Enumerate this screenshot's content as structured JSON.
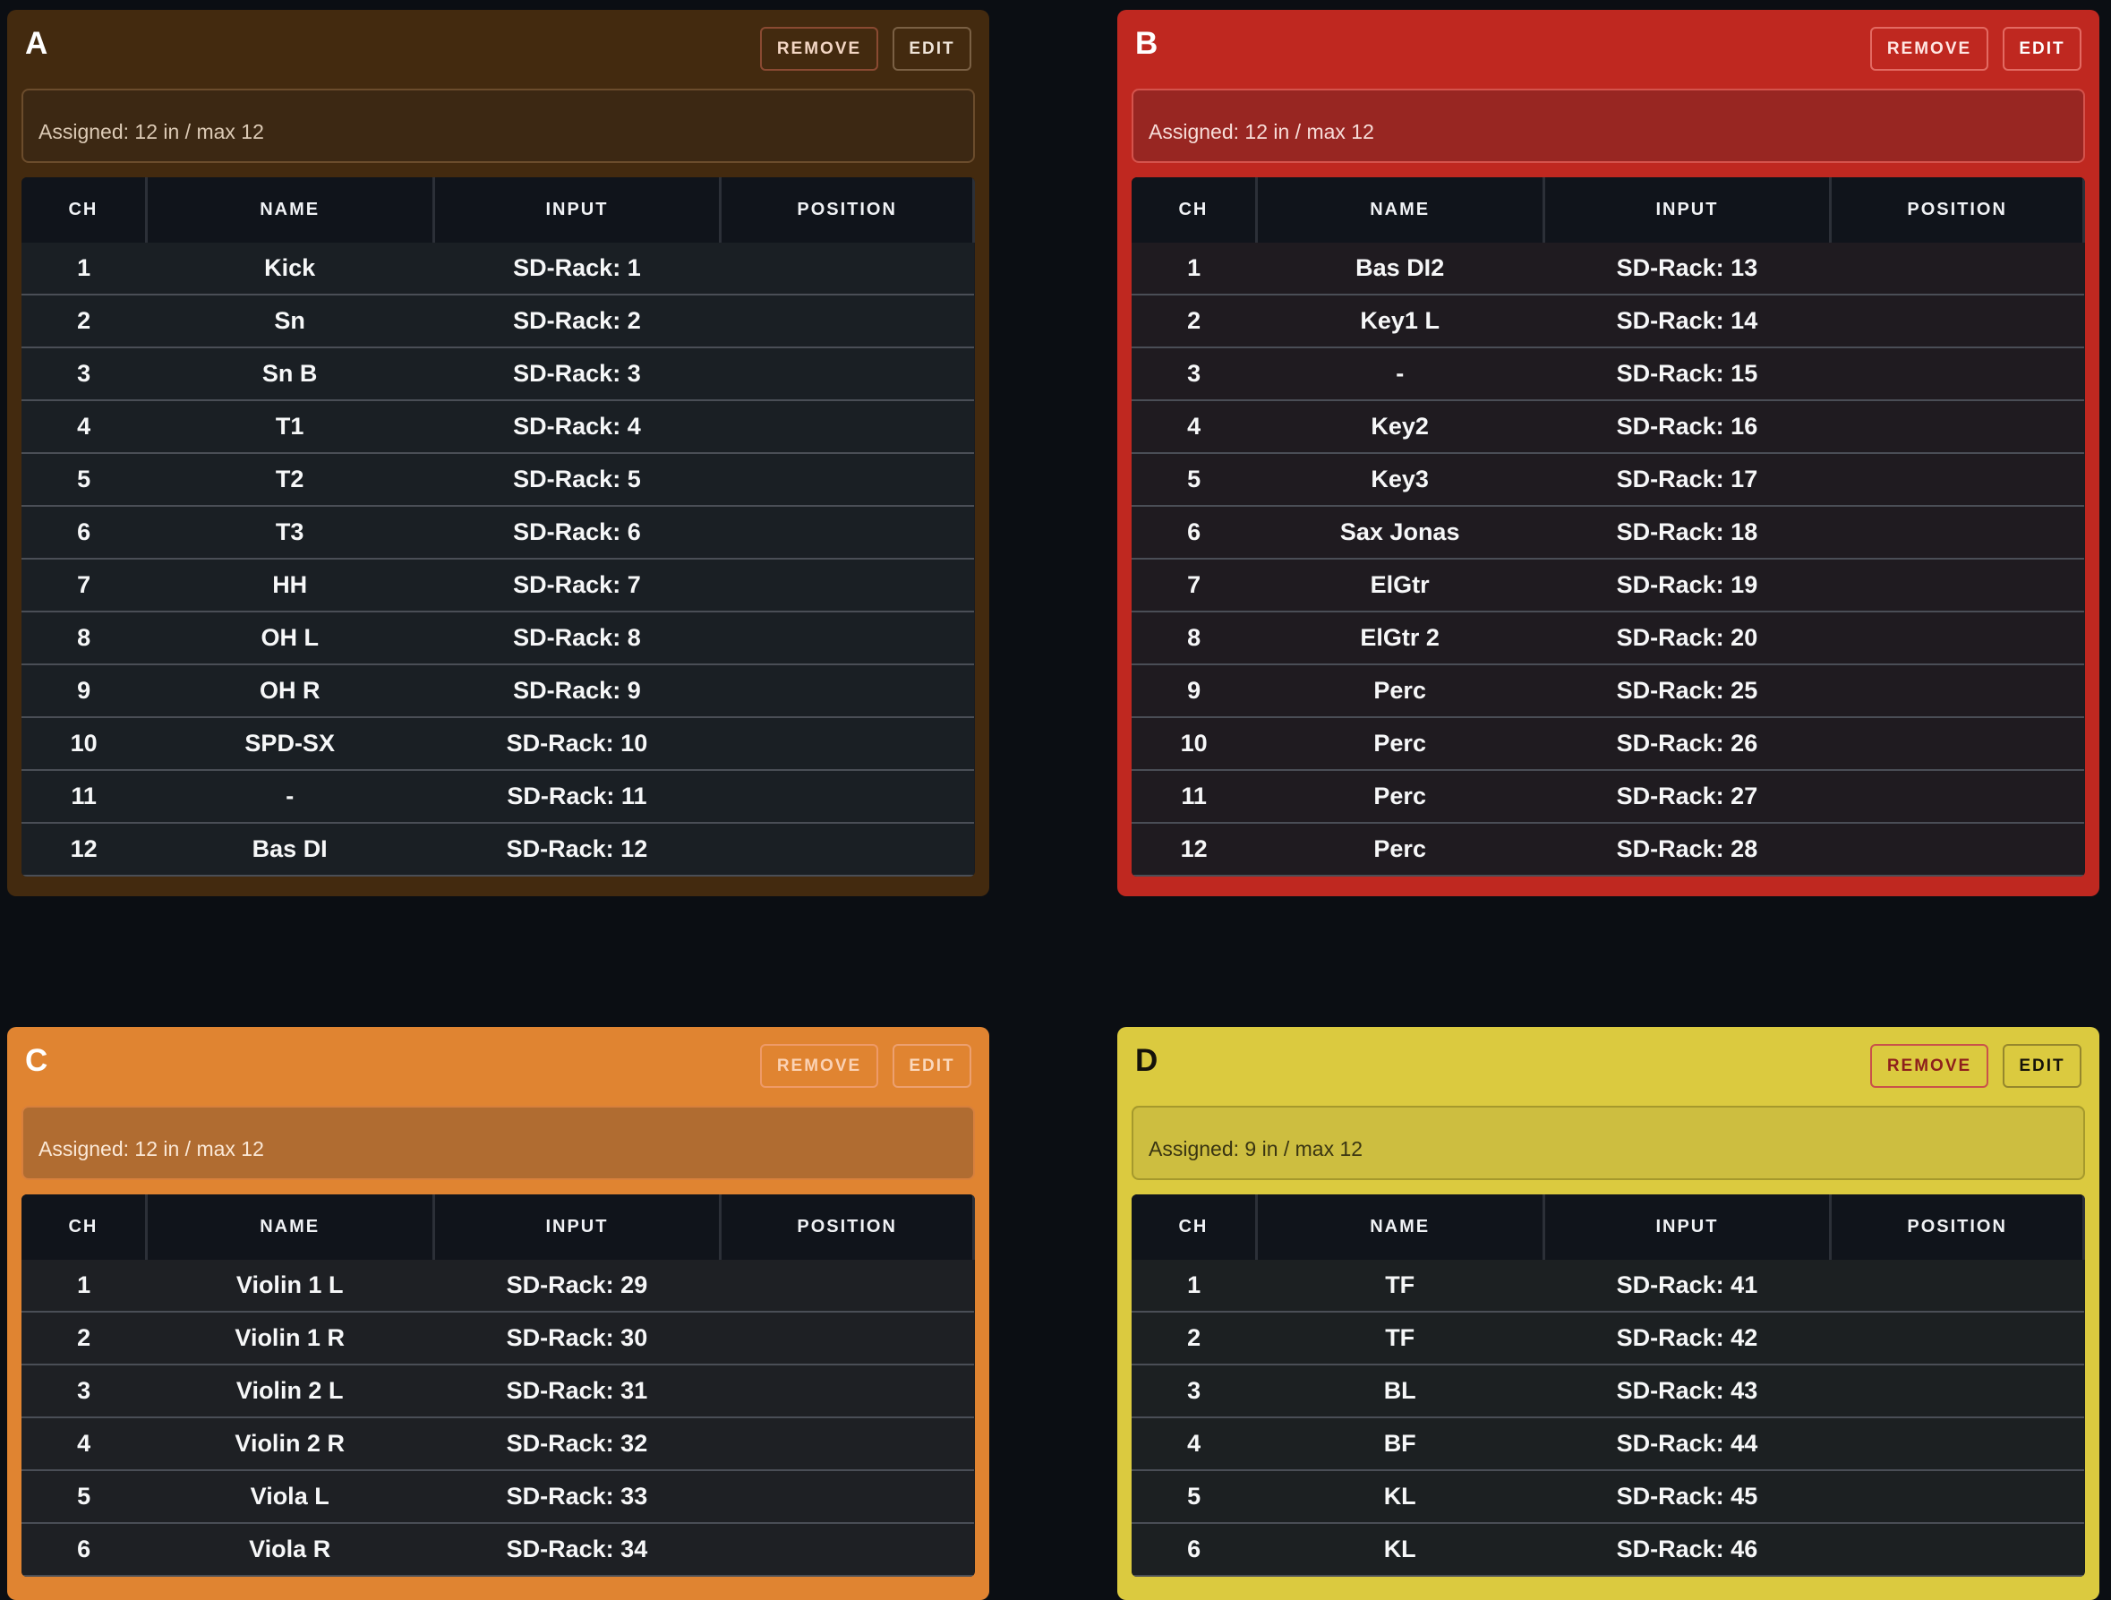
{
  "buttons": {
    "remove": "REMOVE",
    "edit": "EDIT"
  },
  "columns": [
    "CH",
    "NAME",
    "INPUT",
    "POSITION"
  ],
  "panels": [
    {
      "letter": "A",
      "assigned": "Assigned: 12 in / max 12",
      "rows": [
        {
          "ch": "1",
          "name": "Kick",
          "input": "SD-Rack: 1",
          "position": ""
        },
        {
          "ch": "2",
          "name": "Sn",
          "input": "SD-Rack: 2",
          "position": ""
        },
        {
          "ch": "3",
          "name": "Sn B",
          "input": "SD-Rack: 3",
          "position": ""
        },
        {
          "ch": "4",
          "name": "T1",
          "input": "SD-Rack: 4",
          "position": ""
        },
        {
          "ch": "5",
          "name": "T2",
          "input": "SD-Rack: 5",
          "position": ""
        },
        {
          "ch": "6",
          "name": "T3",
          "input": "SD-Rack: 6",
          "position": ""
        },
        {
          "ch": "7",
          "name": "HH",
          "input": "SD-Rack: 7",
          "position": ""
        },
        {
          "ch": "8",
          "name": "OH L",
          "input": "SD-Rack: 8",
          "position": ""
        },
        {
          "ch": "9",
          "name": "OH R",
          "input": "SD-Rack: 9",
          "position": ""
        },
        {
          "ch": "10",
          "name": "SPD-SX",
          "input": "SD-Rack: 10",
          "position": ""
        },
        {
          "ch": "11",
          "name": "-",
          "input": "SD-Rack: 11",
          "position": ""
        },
        {
          "ch": "12",
          "name": "Bas DI",
          "input": "SD-Rack: 12",
          "position": ""
        }
      ]
    },
    {
      "letter": "B",
      "assigned": "Assigned: 12 in / max 12",
      "rows": [
        {
          "ch": "1",
          "name": "Bas DI2",
          "input": "SD-Rack: 13",
          "position": ""
        },
        {
          "ch": "2",
          "name": "Key1 L",
          "input": "SD-Rack: 14",
          "position": ""
        },
        {
          "ch": "3",
          "name": "-",
          "input": "SD-Rack: 15",
          "position": ""
        },
        {
          "ch": "4",
          "name": "Key2",
          "input": "SD-Rack: 16",
          "position": ""
        },
        {
          "ch": "5",
          "name": "Key3",
          "input": "SD-Rack: 17",
          "position": ""
        },
        {
          "ch": "6",
          "name": "Sax Jonas",
          "input": "SD-Rack: 18",
          "position": ""
        },
        {
          "ch": "7",
          "name": "ElGtr",
          "input": "SD-Rack: 19",
          "position": ""
        },
        {
          "ch": "8",
          "name": "ElGtr 2",
          "input": "SD-Rack: 20",
          "position": ""
        },
        {
          "ch": "9",
          "name": "Perc",
          "input": "SD-Rack: 25",
          "position": ""
        },
        {
          "ch": "10",
          "name": "Perc",
          "input": "SD-Rack: 26",
          "position": ""
        },
        {
          "ch": "11",
          "name": "Perc",
          "input": "SD-Rack: 27",
          "position": ""
        },
        {
          "ch": "12",
          "name": "Perc",
          "input": "SD-Rack: 28",
          "position": ""
        }
      ]
    },
    {
      "letter": "C",
      "assigned": "Assigned: 12 in / max 12",
      "rows": [
        {
          "ch": "1",
          "name": "Violin 1 L",
          "input": "SD-Rack: 29",
          "position": ""
        },
        {
          "ch": "2",
          "name": "Violin 1 R",
          "input": "SD-Rack: 30",
          "position": ""
        },
        {
          "ch": "3",
          "name": "Violin 2 L",
          "input": "SD-Rack: 31",
          "position": ""
        },
        {
          "ch": "4",
          "name": "Violin 2 R",
          "input": "SD-Rack: 32",
          "position": ""
        },
        {
          "ch": "5",
          "name": "Viola L",
          "input": "SD-Rack: 33",
          "position": ""
        },
        {
          "ch": "6",
          "name": "Viola R",
          "input": "SD-Rack: 34",
          "position": ""
        }
      ]
    },
    {
      "letter": "D",
      "assigned": "Assigned: 9 in / max 12",
      "rows": [
        {
          "ch": "1",
          "name": "TF",
          "input": "SD-Rack: 41",
          "position": ""
        },
        {
          "ch": "2",
          "name": "TF",
          "input": "SD-Rack: 42",
          "position": ""
        },
        {
          "ch": "3",
          "name": "BL",
          "input": "SD-Rack: 43",
          "position": ""
        },
        {
          "ch": "4",
          "name": "BF",
          "input": "SD-Rack: 44",
          "position": ""
        },
        {
          "ch": "5",
          "name": "KL",
          "input": "SD-Rack: 45",
          "position": ""
        },
        {
          "ch": "6",
          "name": "KL",
          "input": "SD-Rack: 46",
          "position": ""
        }
      ]
    }
  ]
}
